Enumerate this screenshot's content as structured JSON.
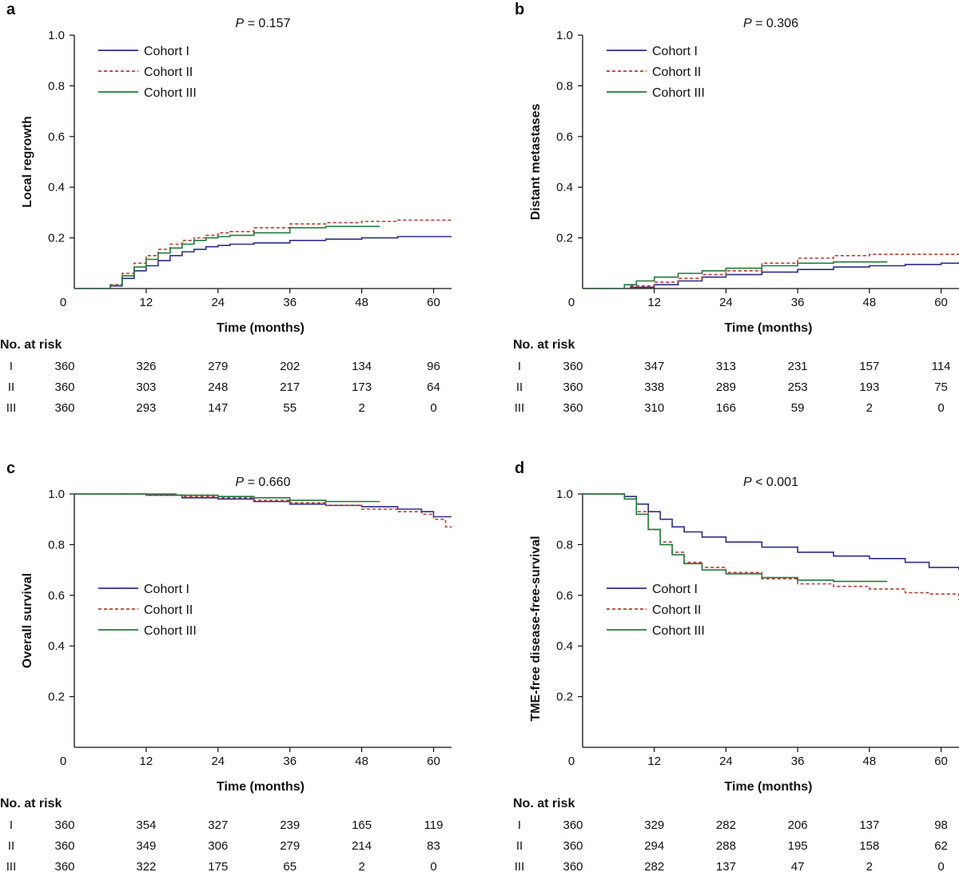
{
  "chart_data": [
    {
      "type": "line",
      "panel": "a",
      "pvalue": {
        "italic": "P",
        "rest": " = 0.157"
      },
      "xlabel": "Time (months)",
      "ylabel": "Local regrowth",
      "xticks": [
        "0",
        "12",
        "24",
        "36",
        "48",
        "60"
      ],
      "yticks": [
        "1.0",
        "0.8",
        "0.6",
        "0.4",
        "0.2"
      ],
      "xlim": [
        0,
        63
      ],
      "ylim": [
        0,
        1
      ],
      "series": [
        {
          "name": "Cohort I",
          "color": "#2b2d8c",
          "dash": "solid",
          "x": [
            0,
            5,
            6,
            8,
            10,
            12,
            14,
            16,
            18,
            20,
            22,
            24,
            26,
            30,
            36,
            42,
            48,
            54,
            63
          ],
          "y": [
            0,
            0,
            0.01,
            0.04,
            0.07,
            0.09,
            0.11,
            0.13,
            0.145,
            0.155,
            0.165,
            0.17,
            0.175,
            0.18,
            0.19,
            0.195,
            0.2,
            0.205,
            0.205
          ]
        },
        {
          "name": "Cohort II",
          "color": "#c0392b",
          "dash": "dashed",
          "x": [
            0,
            5,
            6,
            8,
            10,
            12,
            14,
            16,
            18,
            20,
            22,
            24,
            26,
            30,
            36,
            42,
            48,
            54,
            63
          ],
          "y": [
            0,
            0,
            0.015,
            0.06,
            0.1,
            0.13,
            0.155,
            0.175,
            0.19,
            0.2,
            0.21,
            0.22,
            0.225,
            0.24,
            0.255,
            0.26,
            0.265,
            0.27,
            0.27
          ]
        },
        {
          "name": "Cohort III",
          "color": "#1e7b3a",
          "dash": "solid",
          "x": [
            0,
            5,
            6,
            8,
            10,
            12,
            14,
            16,
            18,
            20,
            22,
            24,
            26,
            30,
            36,
            42,
            51
          ],
          "y": [
            0,
            0,
            0.012,
            0.05,
            0.085,
            0.115,
            0.14,
            0.16,
            0.175,
            0.19,
            0.2,
            0.205,
            0.21,
            0.22,
            0.24,
            0.245,
            0.245
          ]
        }
      ],
      "risk_table": {
        "title": "No. at risk",
        "rows": [
          {
            "label": "I",
            "values": [
              "360",
              "326",
              "279",
              "202",
              "134",
              "96"
            ]
          },
          {
            "label": "II",
            "values": [
              "360",
              "303",
              "248",
              "217",
              "173",
              "64"
            ]
          },
          {
            "label": "III",
            "values": [
              "360",
              "293",
              "147",
              "55",
              "2",
              "0"
            ]
          }
        ]
      }
    },
    {
      "type": "line",
      "panel": "b",
      "pvalue": {
        "italic": "P",
        "rest": " = 0.306"
      },
      "xlabel": "Time (months)",
      "ylabel": "Distant metastases",
      "xticks": [
        "0",
        "12",
        "24",
        "36",
        "48",
        "60"
      ],
      "yticks": [
        "1.0",
        "0.8",
        "0.6",
        "0.4",
        "0.2"
      ],
      "xlim": [
        0,
        63
      ],
      "ylim": [
        0,
        1
      ],
      "series": [
        {
          "name": "Cohort I",
          "color": "#2b2d8c",
          "dash": "solid",
          "x": [
            0,
            5,
            8,
            12,
            16,
            20,
            24,
            30,
            36,
            42,
            48,
            54,
            60,
            63
          ],
          "y": [
            0,
            0,
            0.005,
            0.015,
            0.03,
            0.045,
            0.055,
            0.065,
            0.075,
            0.085,
            0.09,
            0.095,
            0.1,
            0.105
          ]
        },
        {
          "name": "Cohort II",
          "color": "#c0392b",
          "dash": "dashed",
          "x": [
            0,
            5,
            8,
            12,
            16,
            20,
            24,
            30,
            36,
            42,
            48,
            54,
            63
          ],
          "y": [
            0,
            0,
            0.01,
            0.025,
            0.04,
            0.055,
            0.07,
            0.1,
            0.12,
            0.13,
            0.135,
            0.135,
            0.135
          ]
        },
        {
          "name": "Cohort III",
          "color": "#1e7b3a",
          "dash": "solid",
          "x": [
            0,
            5,
            7,
            9,
            12,
            16,
            20,
            24,
            30,
            36,
            42,
            51
          ],
          "y": [
            0,
            0,
            0.015,
            0.03,
            0.045,
            0.06,
            0.07,
            0.08,
            0.09,
            0.1,
            0.105,
            0.105
          ]
        }
      ],
      "risk_table": {
        "title": "No. at risk",
        "rows": [
          {
            "label": "I",
            "values": [
              "360",
              "347",
              "313",
              "231",
              "157",
              "114"
            ]
          },
          {
            "label": "II",
            "values": [
              "360",
              "338",
              "289",
              "253",
              "193",
              "75"
            ]
          },
          {
            "label": "III",
            "values": [
              "360",
              "310",
              "166",
              "59",
              "2",
              "0"
            ]
          }
        ]
      }
    },
    {
      "type": "line",
      "panel": "c",
      "pvalue": {
        "italic": "P",
        "rest": " = 0.660"
      },
      "xlabel": "Time (months)",
      "ylabel": "Overall survival",
      "xticks": [
        "0",
        "12",
        "24",
        "36",
        "48",
        "60"
      ],
      "yticks": [
        "1.0",
        "0.8",
        "0.6",
        "0.4",
        "0.2"
      ],
      "xlim": [
        0,
        63
      ],
      "ylim": [
        0,
        1
      ],
      "series": [
        {
          "name": "Cohort I",
          "color": "#2b2d8c",
          "dash": "solid",
          "x": [
            0,
            12,
            18,
            24,
            30,
            36,
            42,
            48,
            54,
            58,
            60,
            63
          ],
          "y": [
            1,
            0.995,
            0.985,
            0.98,
            0.97,
            0.96,
            0.955,
            0.95,
            0.94,
            0.93,
            0.91,
            0.91
          ]
        },
        {
          "name": "Cohort II",
          "color": "#c0392b",
          "dash": "dashed",
          "x": [
            0,
            12,
            18,
            24,
            30,
            36,
            42,
            48,
            54,
            58,
            60,
            62,
            63
          ],
          "y": [
            1,
            0.995,
            0.99,
            0.985,
            0.975,
            0.965,
            0.955,
            0.94,
            0.93,
            0.92,
            0.9,
            0.87,
            0.865
          ]
        },
        {
          "name": "Cohort III",
          "color": "#1e7b3a",
          "dash": "solid",
          "x": [
            0,
            12,
            17,
            24,
            30,
            36,
            42,
            51
          ],
          "y": [
            1,
            1,
            0.995,
            0.99,
            0.985,
            0.975,
            0.97,
            0.97
          ]
        }
      ],
      "risk_table": {
        "title": "No. at risk",
        "rows": [
          {
            "label": "I",
            "values": [
              "360",
              "354",
              "327",
              "239",
              "165",
              "119"
            ]
          },
          {
            "label": "II",
            "values": [
              "360",
              "349",
              "306",
              "279",
              "214",
              "83"
            ]
          },
          {
            "label": "III",
            "values": [
              "360",
              "322",
              "175",
              "65",
              "2",
              "0"
            ]
          }
        ]
      }
    },
    {
      "type": "line",
      "panel": "d",
      "pvalue": {
        "italic": "P",
        "rest": " < 0.001"
      },
      "xlabel": "Time (months)",
      "ylabel": "TME-free disease-free-survival",
      "xticks": [
        "0",
        "12",
        "24",
        "36",
        "48",
        "60"
      ],
      "yticks": [
        "1.0",
        "0.8",
        "0.6",
        "0.4",
        "0.2"
      ],
      "xlim": [
        0,
        63
      ],
      "ylim": [
        0,
        1
      ],
      "series": [
        {
          "name": "Cohort I",
          "color": "#2b2d8c",
          "dash": "solid",
          "x": [
            0,
            5,
            7,
            9,
            11,
            13,
            15,
            17,
            20,
            24,
            30,
            36,
            42,
            48,
            54,
            58,
            63
          ],
          "y": [
            1,
            1,
            0.99,
            0.96,
            0.93,
            0.9,
            0.87,
            0.85,
            0.83,
            0.81,
            0.79,
            0.77,
            0.755,
            0.745,
            0.73,
            0.71,
            0.7
          ]
        },
        {
          "name": "Cohort II",
          "color": "#c0392b",
          "dash": "dashed",
          "x": [
            0,
            5,
            7,
            9,
            11,
            13,
            15,
            17,
            20,
            24,
            30,
            36,
            42,
            48,
            54,
            58,
            63
          ],
          "y": [
            1,
            1,
            0.98,
            0.93,
            0.86,
            0.81,
            0.77,
            0.73,
            0.71,
            0.69,
            0.665,
            0.645,
            0.635,
            0.625,
            0.61,
            0.605,
            0.58
          ]
        },
        {
          "name": "Cohort III",
          "color": "#1e7b3a",
          "dash": "solid",
          "x": [
            0,
            5,
            7,
            9,
            11,
            13,
            15,
            17,
            20,
            24,
            30,
            36,
            42,
            51
          ],
          "y": [
            1,
            1,
            0.98,
            0.92,
            0.86,
            0.8,
            0.76,
            0.725,
            0.7,
            0.685,
            0.67,
            0.66,
            0.655,
            0.655
          ]
        }
      ],
      "risk_table": {
        "title": "No. at risk",
        "rows": [
          {
            "label": "I",
            "values": [
              "360",
              "329",
              "282",
              "206",
              "137",
              "98"
            ]
          },
          {
            "label": "II",
            "values": [
              "360",
              "294",
              "288",
              "195",
              "158",
              "62"
            ]
          },
          {
            "label": "III",
            "values": [
              "360",
              "282",
              "137",
              "47",
              "2",
              "0"
            ]
          }
        ]
      }
    }
  ]
}
